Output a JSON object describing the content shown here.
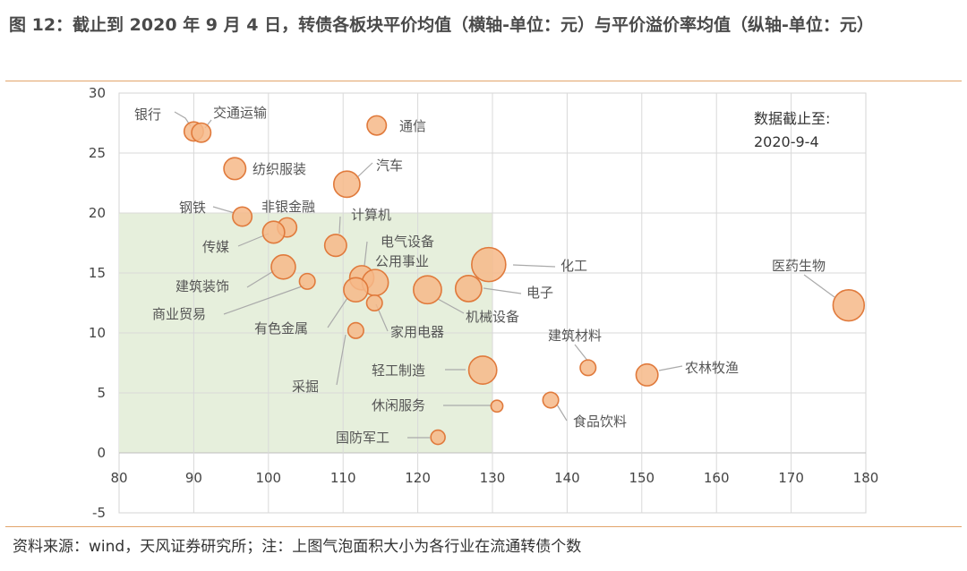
{
  "header": {
    "title": "图 12：截止到 2020 年 9 月 4 日，转债各板块平价均值（横轴-单位：元）与平价溢价率均值（纵轴-单位：元）"
  },
  "footer": {
    "source": "资料来源：wind，天风证券研究所；注：上图气泡面积大小为各行业在流通转债个数"
  },
  "note": {
    "line1": "数据截止至:",
    "line2": "2020-9-4"
  },
  "colors": {
    "bubble_fill": "#f6b888",
    "bubble_stroke": "#e07a3c",
    "highlight": "#e6efdc",
    "rule": "#e2a46b"
  },
  "chart_data": {
    "type": "bubble",
    "xlim": [
      80,
      180
    ],
    "ylim": [
      -5,
      30
    ],
    "xticks": [
      80,
      90,
      100,
      110,
      120,
      130,
      140,
      150,
      160,
      170,
      180
    ],
    "yticks": [
      -5,
      0,
      5,
      10,
      15,
      20,
      25,
      30
    ],
    "highlight_region": {
      "x": [
        80,
        130
      ],
      "y": [
        0,
        20
      ]
    },
    "points": [
      {
        "name": "银行",
        "x": 90,
        "y": 26.8,
        "size": 2
      },
      {
        "name": "交通运输",
        "x": 91,
        "y": 26.7,
        "size": 2
      },
      {
        "name": "通信",
        "x": 114.5,
        "y": 27.3,
        "size": 2
      },
      {
        "name": "纺织服装",
        "x": 95.5,
        "y": 23.7,
        "size": 3
      },
      {
        "name": "汽车",
        "x": 110.5,
        "y": 22.4,
        "size": 5
      },
      {
        "name": "钢铁",
        "x": 96.5,
        "y": 19.7,
        "size": 2
      },
      {
        "name": "非银金融",
        "x": 102.5,
        "y": 18.8,
        "size": 2
      },
      {
        "name": "计算机",
        "x": 109,
        "y": 17.3,
        "size": 3
      },
      {
        "name": "传媒",
        "x": 100.7,
        "y": 18.4,
        "size": 3
      },
      {
        "name": "电气设备",
        "x": 112.5,
        "y": 14.6,
        "size": 4
      },
      {
        "name": "公用事业",
        "x": 114.3,
        "y": 14.2,
        "size": 5
      },
      {
        "name": "化工",
        "x": 129.5,
        "y": 15.7,
        "size": 10
      },
      {
        "name": "建筑装饰",
        "x": 102,
        "y": 15.5,
        "size": 4
      },
      {
        "name": "商业贸易",
        "x": 105.2,
        "y": 14.3,
        "size": 1
      },
      {
        "name": "有色金属",
        "x": 111.7,
        "y": 13.6,
        "size": 4
      },
      {
        "name": "家用电器",
        "x": 114.2,
        "y": 12.5,
        "size": 1
      },
      {
        "name": "电子",
        "x": 126.8,
        "y": 13.7,
        "size": 5
      },
      {
        "name": "机械设备",
        "x": 121.3,
        "y": 13.6,
        "size": 6
      },
      {
        "name": "医药生物",
        "x": 177.7,
        "y": 12.3,
        "size": 8
      },
      {
        "name": "建筑材料",
        "x": 142.8,
        "y": 7.1,
        "size": 1
      },
      {
        "name": "农林牧渔",
        "x": 150.7,
        "y": 6.5,
        "size": 3
      },
      {
        "name": "采掘",
        "x": 111.7,
        "y": 10.2,
        "size": 1
      },
      {
        "name": "轻工制造",
        "x": 128.7,
        "y": 6.9,
        "size": 6
      },
      {
        "name": "休闲服务",
        "x": 130.6,
        "y": 3.9,
        "size": 0.3
      },
      {
        "name": "食品饮料",
        "x": 137.8,
        "y": 4.4,
        "size": 1
      },
      {
        "name": "国防军工",
        "x": 122.7,
        "y": 1.3,
        "size": 0.7
      }
    ]
  }
}
